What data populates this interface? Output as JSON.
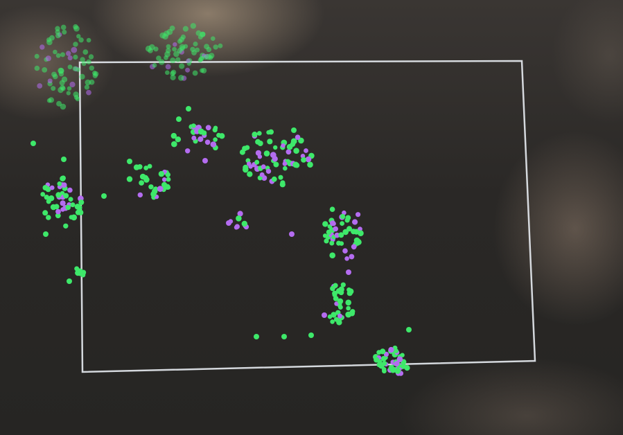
{
  "photo": {
    "subject": "",
    "colors": {
      "background": "#2a2826",
      "frame": "#e8ecf2",
      "dot_green": "#3ee86a",
      "dot_purple": "#b46cf0"
    }
  }
}
